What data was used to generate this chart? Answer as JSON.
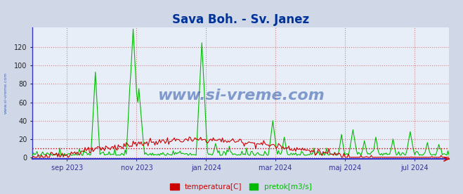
{
  "title": "Sava Boh. - Sv. Janez",
  "title_color": "#003399",
  "title_fontsize": 12,
  "background_color": "#d0d8e8",
  "plot_bg_color": "#e8eef8",
  "ylim": [
    -2,
    142
  ],
  "yticks": [
    0,
    20,
    40,
    60,
    80,
    100,
    120
  ],
  "grid_color": "#cc6666",
  "temp_color": "#cc0000",
  "flow_color": "#00bb00",
  "hline_color": "#cc0000",
  "hline_y": 10,
  "axis_color": "#3333cc",
  "watermark": "www.si-vreme.com",
  "watermark_color": "#003399",
  "legend_labels": [
    "temperatura[C]",
    "pretok[m3/s]"
  ],
  "legend_colors": [
    "#cc0000",
    "#00bb00"
  ],
  "side_label": "www.si-vreme.com",
  "side_label_color": "#3355aa",
  "xticklabels": [
    "sep 2023",
    "nov 2023",
    "jan 2024",
    "mar 2024",
    "maj 2024",
    "jul 2024"
  ],
  "xtick_positions_frac": [
    0.083,
    0.25,
    0.417,
    0.583,
    0.75,
    0.917
  ]
}
